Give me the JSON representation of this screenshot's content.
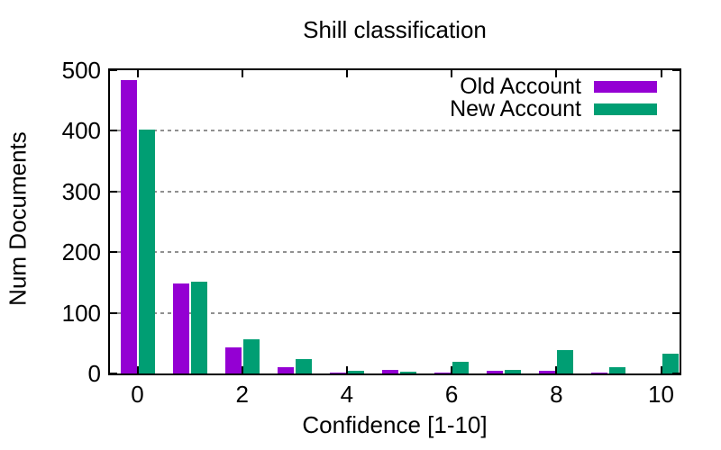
{
  "title": "Shill classification",
  "chart_data": {
    "type": "bar",
    "title": "Shill classification",
    "xlabel": "Confidence [1-10]",
    "ylabel": "Num Documents",
    "categories": [
      0,
      1,
      2,
      3,
      4,
      5,
      6,
      7,
      8,
      9,
      10
    ],
    "series": [
      {
        "name": "Old Account",
        "color": "#9400d3",
        "values": [
          484,
          148,
          43,
          10,
          2,
          6,
          2,
          5,
          4,
          2,
          0
        ]
      },
      {
        "name": "New Account",
        "color": "#009e73",
        "values": [
          402,
          151,
          57,
          24,
          4,
          3,
          20,
          6,
          38,
          11,
          32
        ]
      }
    ],
    "ylim": [
      0,
      500
    ],
    "y_ticks": [
      0,
      100,
      200,
      300,
      400,
      500
    ],
    "x_labeled_ticks": [
      0,
      2,
      4,
      6,
      8,
      10
    ],
    "grid": {
      "horizontal": true,
      "style": "dotted",
      "color": "#909090"
    },
    "legend_position": "inside-top-right",
    "axis_color": "#000000",
    "background": "#ffffff"
  }
}
